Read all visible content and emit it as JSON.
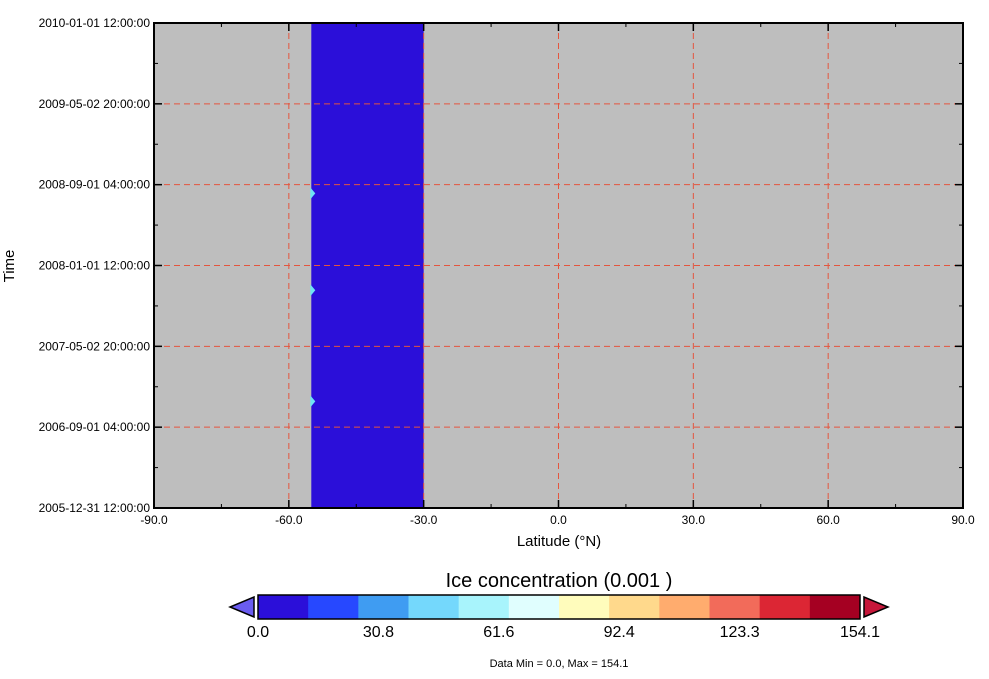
{
  "chart_data": {
    "type": "heatmap",
    "title": "",
    "xlabel": "Latitude (°N)",
    "ylabel": "Time",
    "xlim": [
      -90,
      90
    ],
    "ylim": [
      "2005-12-31 12:00:00",
      "2010-01-01 12:00:00"
    ],
    "x_ticks": [
      "-90.0",
      "-60.0",
      "-30.0",
      "0.0",
      "30.0",
      "60.0",
      "90.0"
    ],
    "y_ticks": [
      "2005-12-31 12:00:00",
      "2006-09-01 04:00:00",
      "2007-05-02 20:00:00",
      "2008-01-01 12:00:00",
      "2008-09-01 04:00:00",
      "2009-05-02 20:00:00",
      "2010-01-01 12:00:00"
    ],
    "grid": true,
    "missing_color": "#bebebe",
    "data_band": {
      "lat_range": [
        -55,
        -30
      ],
      "value_range": [
        0.0,
        15.4
      ],
      "color": "#2b0fd9"
    },
    "edge_features": [
      {
        "lat": -55,
        "time": "2008-08-06",
        "note": "cyan streak"
      },
      {
        "lat": -55,
        "time": "2007-10-19",
        "note": "cyan streak"
      },
      {
        "lat": -55,
        "time": "2006-11-18",
        "note": "cyan streak"
      }
    ],
    "colorbar": {
      "title": "Ice concentration (0.001 )",
      "labels": [
        "0.0",
        "30.8",
        "61.6",
        "92.4",
        "123.3",
        "154.1"
      ],
      "min": 0.0,
      "max": 154.1,
      "colors": [
        "#2b0fd9",
        "#2748ff",
        "#3f9cf2",
        "#74d8fc",
        "#a8f4fc",
        "#e0fefe",
        "#fffcbc",
        "#ffd98c",
        "#ffac6e",
        "#f26b5a",
        "#dc2634",
        "#a50022"
      ],
      "under_color": "#6a5cf0",
      "over_color": "#c6173a"
    },
    "data_min_max": "Data Min = 0.0, Max = 154.1"
  }
}
